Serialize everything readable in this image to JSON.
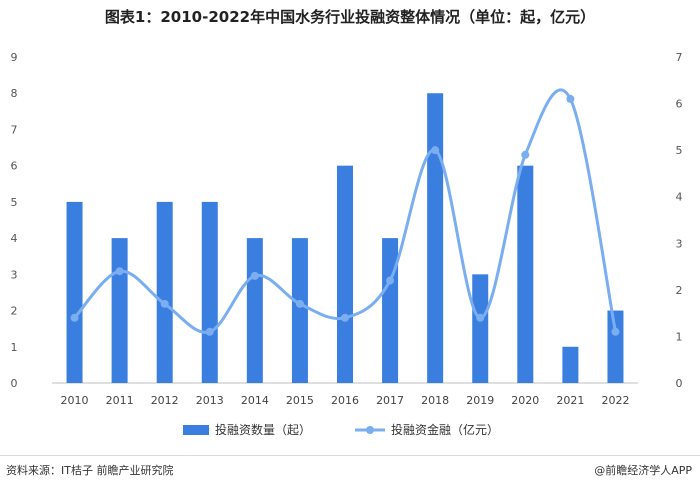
{
  "title": "图表1：2010-2022年中国水务行业投融资整体情况（单位：起，亿元）",
  "source": "资料来源：IT桔子 前瞻产业研究院",
  "credit": "@前瞻经济学人APP",
  "colors": {
    "bar": "#3a7fe0",
    "line": "#7aaef0"
  },
  "chart_data": {
    "type": "bar",
    "categories": [
      "2010",
      "2011",
      "2012",
      "2013",
      "2014",
      "2015",
      "2016",
      "2017",
      "2018",
      "2019",
      "2020",
      "2021",
      "2022"
    ],
    "series": [
      {
        "name": "投融资数量（起）",
        "type": "bar",
        "axis": "left",
        "values": [
          5,
          4,
          5,
          5,
          4,
          4,
          6,
          4,
          8,
          3,
          6,
          1,
          2
        ]
      },
      {
        "name": "投融资金融（亿元）",
        "type": "line",
        "smooth": true,
        "axis": "right",
        "values": [
          1.4,
          2.4,
          1.7,
          1.1,
          2.3,
          1.7,
          1.4,
          2.2,
          5.0,
          1.4,
          4.9,
          6.1,
          1.1
        ]
      }
    ],
    "yleft": {
      "min": 0,
      "max": 9,
      "ticks": [
        "0",
        "1",
        "2",
        "3",
        "4",
        "5",
        "6",
        "7",
        "8",
        "9"
      ]
    },
    "yright": {
      "min": 0,
      "max": 7,
      "ticks": [
        "0",
        "1",
        "2",
        "3",
        "4",
        "5",
        "6",
        "7"
      ]
    },
    "legend_position": "bottom",
    "grid": false
  }
}
